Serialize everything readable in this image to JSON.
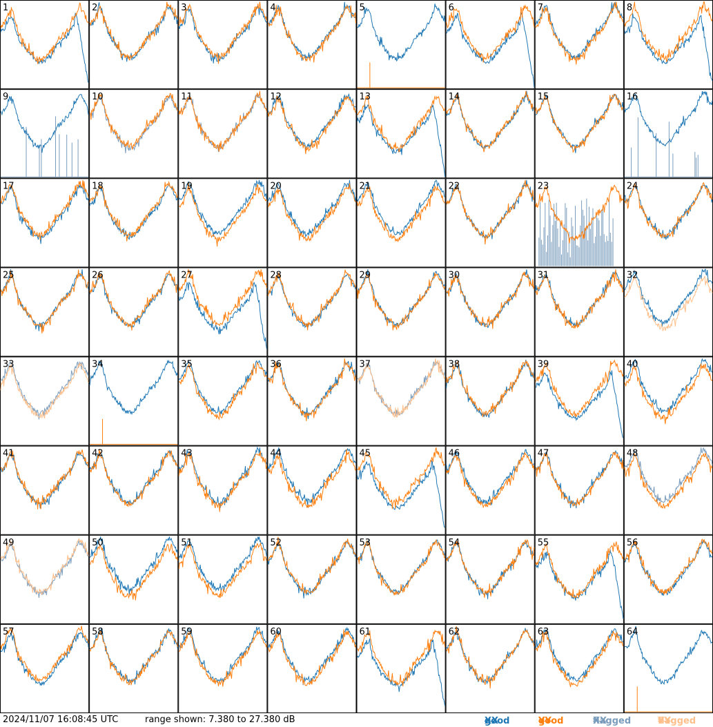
{
  "chart_data": {
    "type": "line",
    "grid": {
      "rows": 8,
      "cols": 8
    },
    "panels": [
      {
        "id": "1",
        "flag": "b0"
      },
      {
        "id": "2",
        "flag": "none"
      },
      {
        "id": "3",
        "flag": "none"
      },
      {
        "id": "4",
        "flag": "none"
      },
      {
        "id": "5",
        "flag": "y0"
      },
      {
        "id": "6",
        "flag": "b0"
      },
      {
        "id": "7",
        "flag": "none"
      },
      {
        "id": "8",
        "flag": "b0"
      },
      {
        "id": "9",
        "flag": "yX"
      },
      {
        "id": "10",
        "flag": "bF"
      },
      {
        "id": "11",
        "flag": "bF"
      },
      {
        "id": "12",
        "flag": "none"
      },
      {
        "id": "13",
        "flag": "b0"
      },
      {
        "id": "14",
        "flag": "none"
      },
      {
        "id": "15",
        "flag": "none"
      },
      {
        "id": "16",
        "flag": "yX"
      },
      {
        "id": "17",
        "flag": "none"
      },
      {
        "id": "18",
        "flag": "none"
      },
      {
        "id": "19",
        "flag": "none"
      },
      {
        "id": "20",
        "flag": "none"
      },
      {
        "id": "21",
        "flag": "none"
      },
      {
        "id": "22",
        "flag": "none"
      },
      {
        "id": "23",
        "flag": "bX"
      },
      {
        "id": "24",
        "flag": "none"
      },
      {
        "id": "25",
        "flag": "none"
      },
      {
        "id": "26",
        "flag": "none"
      },
      {
        "id": "27",
        "flag": "b0"
      },
      {
        "id": "28",
        "flag": "none"
      },
      {
        "id": "29",
        "flag": "none"
      },
      {
        "id": "30",
        "flag": "none"
      },
      {
        "id": "31",
        "flag": "none"
      },
      {
        "id": "32",
        "flag": "yF"
      },
      {
        "id": "33",
        "flag": "bothF"
      },
      {
        "id": "34",
        "flag": "y0"
      },
      {
        "id": "35",
        "flag": "none"
      },
      {
        "id": "36",
        "flag": "none"
      },
      {
        "id": "37",
        "flag": "bothF"
      },
      {
        "id": "38",
        "flag": "none"
      },
      {
        "id": "39",
        "flag": "b0"
      },
      {
        "id": "40",
        "flag": "none"
      },
      {
        "id": "41",
        "flag": "none"
      },
      {
        "id": "42",
        "flag": "none"
      },
      {
        "id": "43",
        "flag": "none"
      },
      {
        "id": "44",
        "flag": "none"
      },
      {
        "id": "45",
        "flag": "b0"
      },
      {
        "id": "46",
        "flag": "none"
      },
      {
        "id": "47",
        "flag": "none"
      },
      {
        "id": "48",
        "flag": "bF"
      },
      {
        "id": "49",
        "flag": "bothF"
      },
      {
        "id": "50",
        "flag": "none"
      },
      {
        "id": "51",
        "flag": "none"
      },
      {
        "id": "52",
        "flag": "none"
      },
      {
        "id": "53",
        "flag": "none"
      },
      {
        "id": "54",
        "flag": "none"
      },
      {
        "id": "55",
        "flag": "b0"
      },
      {
        "id": "56",
        "flag": "none"
      },
      {
        "id": "57",
        "flag": "none"
      },
      {
        "id": "58",
        "flag": "none"
      },
      {
        "id": "59",
        "flag": "none"
      },
      {
        "id": "60",
        "flag": "none"
      },
      {
        "id": "61",
        "flag": "b0"
      },
      {
        "id": "62",
        "flag": "none"
      },
      {
        "id": "63",
        "flag": "none"
      },
      {
        "id": "64",
        "flag": "y0"
      }
    ],
    "ylim": [
      7.38,
      27.38
    ],
    "legend_position": "bottom-right"
  },
  "footer": {
    "timestamp": "2024/11/07 16:08:45 UTC",
    "range_text": "range shown: 7.380 to 27.380 dB"
  },
  "legend": {
    "good_xx": {
      "word": "good ",
      "pol": "XX",
      "color": "#1f77b4"
    },
    "good_yy": {
      "word": "good ",
      "pol": "YY",
      "color": "#ff7f0e"
    },
    "flagged_xx": {
      "word": "flagged ",
      "pol": "XX",
      "color": "#7a9cbc"
    },
    "flagged_yy": {
      "word": "flagged ",
      "pol": "YY",
      "color": "#ffbf8a"
    }
  }
}
